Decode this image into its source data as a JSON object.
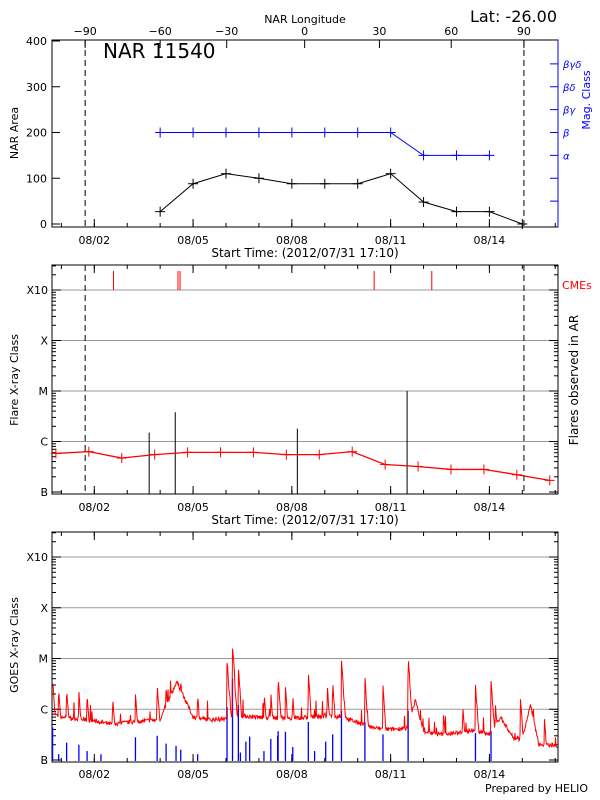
{
  "header": {
    "lat_label": "Lat: -26.00",
    "region_title": "NAR 11540"
  },
  "footer": {
    "credit": "Prepared by HELIO"
  },
  "colors": {
    "area": "#000000",
    "mag_class": "#0000ff",
    "flare_background": "#ff0000",
    "cme": "#ff0000",
    "goes_flux": "#ff0000",
    "goes_events": "#0000ff",
    "grid": "#999999"
  },
  "chart_data": [
    {
      "type": "line",
      "title": "NAR 11540",
      "xlabel": "Start Time: (2012/07/31 17:10)",
      "ylabel": "NAR Area",
      "y2label": "Mag. Class",
      "x2label": "NAR Longitude",
      "xlim": [
        "2012-07-31 17:10",
        "2012-08-16 02:00"
      ],
      "ylim": [
        0,
        400
      ],
      "yticks": [
        0,
        100,
        200,
        300,
        400
      ],
      "xtick_labels": [
        "08/02",
        "08/05",
        "08/08",
        "08/11",
        "08/14"
      ],
      "xtick_dates": [
        "2012-08-02 00:00",
        "2012-08-05 00:00",
        "2012-08-08 00:00",
        "2012-08-11 00:00",
        "2012-08-14 00:00"
      ],
      "longitude_ticks": [
        {
          "label": "-90",
          "date": "2012-08-01 17:20"
        },
        {
          "label": "-60",
          "date": "2012-08-04 00:00"
        },
        {
          "label": "-30",
          "date": "2012-08-06 00:30"
        },
        {
          "label": "0",
          "date": "2012-08-08 09:20"
        },
        {
          "label": "30",
          "date": "2012-08-10 15:50"
        },
        {
          "label": "60",
          "date": "2012-08-12 20:10"
        },
        {
          "label": "90",
          "date": "2012-08-15 01:10"
        }
      ],
      "limb_lines": [
        "2012-08-01 17:20",
        "2012-08-15 01:10"
      ],
      "mag_class_ticks": [
        {
          "label": "α",
          "value": 150
        },
        {
          "label": "β",
          "value": 200
        },
        {
          "label": "βγ",
          "value": 250
        },
        {
          "label": "βδ",
          "value": 300
        },
        {
          "label": "βγδ",
          "value": 350
        },
        {
          "label": "",
          "value": 100
        },
        {
          "label": "",
          "value": 50
        }
      ],
      "series": [
        {
          "key": "area",
          "x": [
            "2012-08-04 00:00",
            "2012-08-05 00:00",
            "2012-08-06 00:00",
            "2012-08-07 00:00",
            "2012-08-08 00:00",
            "2012-08-09 00:00",
            "2012-08-10 00:00",
            "2012-08-11 00:00",
            "2012-08-12 00:00",
            "2012-08-13 00:00",
            "2012-08-14 00:00",
            "2012-08-15 00:00"
          ],
          "values": [
            27,
            88,
            110,
            100,
            88,
            88,
            88,
            110,
            48,
            27,
            27,
            0
          ]
        },
        {
          "key": "mag_class",
          "x": [
            "2012-08-04 00:00",
            "2012-08-05 00:00",
            "2012-08-06 00:00",
            "2012-08-07 00:00",
            "2012-08-08 00:00",
            "2012-08-09 00:00",
            "2012-08-10 00:00",
            "2012-08-11 00:00",
            "2012-08-12 00:00",
            "2012-08-13 00:00",
            "2012-08-14 00:00"
          ],
          "values": [
            "β",
            "β",
            "β",
            "β",
            "β",
            "β",
            "β",
            "β",
            "α",
            "α",
            "α"
          ]
        }
      ]
    },
    {
      "type": "line",
      "xlabel": "Start Time: (2012/07/31 17:10)",
      "ylabel": "Flare X-ray Class",
      "y2label": "Flares observed in AR",
      "cme_label": "CMEs",
      "yscale": "log",
      "ylim": [
        1e-07,
        0.001
      ],
      "ytick_labels": [
        "B",
        "C",
        "M",
        "X",
        "X10"
      ],
      "ytick_values": [
        1e-07,
        1e-06,
        1e-05,
        0.0001,
        0.001
      ],
      "xlim": [
        "2012-07-31 17:10",
        "2012-08-16 02:00"
      ],
      "xtick_labels": [
        "08/02",
        "08/05",
        "08/08",
        "08/11",
        "08/14"
      ],
      "limb_lines": [
        "2012-08-01 17:20",
        "2012-08-15 01:10"
      ],
      "background": {
        "x": [
          "2012-07-31 20:00",
          "2012-08-01 20:00",
          "2012-08-02 20:00",
          "2012-08-03 20:00",
          "2012-08-04 20:00",
          "2012-08-05 20:00",
          "2012-08-06 20:00",
          "2012-08-07 20:00",
          "2012-08-08 20:00",
          "2012-08-09 20:00",
          "2012-08-10 20:00",
          "2012-08-11 20:00",
          "2012-08-12 20:00",
          "2012-08-13 20:00",
          "2012-08-14 20:00",
          "2012-08-15 20:00"
        ],
        "values": [
          5.8e-07,
          6.3e-07,
          4.7e-07,
          5.5e-07,
          6.1e-07,
          6.1e-07,
          6.1e-07,
          5.5e-07,
          5.5e-07,
          6.3e-07,
          3.5e-07,
          3.2e-07,
          2.8e-07,
          2.8e-07,
          2.2e-07,
          1.7e-07
        ]
      },
      "flares": [
        {
          "date": "2012-08-03 16:00",
          "flux": 1.5e-06
        },
        {
          "date": "2012-08-04 11:00",
          "flux": 3.8e-06
        },
        {
          "date": "2012-08-08 04:00",
          "flux": 1.8e-06
        },
        {
          "date": "2012-08-11 12:00",
          "flux": 1e-05
        }
      ],
      "cmes": [
        "2012-08-02 14:00",
        "2012-08-04 13:00",
        "2012-08-04 14:30",
        "2012-08-10 12:00",
        "2012-08-12 06:00"
      ]
    },
    {
      "type": "line",
      "ylabel": "GOES X-ray Class",
      "yscale": "log",
      "ylim": [
        1e-07,
        0.001
      ],
      "ytick_labels": [
        "B",
        "C",
        "M",
        "X",
        "X10"
      ],
      "ytick_values": [
        1e-07,
        1e-06,
        1e-05,
        0.0001,
        0.001
      ],
      "xlim": [
        "2012-07-31 17:10",
        "2012-08-16 02:00"
      ],
      "xtick_labels": [
        "08/02",
        "08/05",
        "08/08",
        "08/11",
        "08/14"
      ],
      "goes_background": {
        "x": [
          "2012-07-31 17:10",
          "2012-08-01 00:00",
          "2012-08-01 12:00",
          "2012-08-02 00:00",
          "2012-08-02 12:00",
          "2012-08-03 00:00",
          "2012-08-03 12:00",
          "2012-08-04 00:00",
          "2012-08-04 12:00",
          "2012-08-04 18:00",
          "2012-08-05 00:00",
          "2012-08-05 12:00",
          "2012-08-06 00:00",
          "2012-08-06 12:00",
          "2012-08-07 00:00",
          "2012-08-07 12:00",
          "2012-08-08 00:00",
          "2012-08-08 12:00",
          "2012-08-09 00:00",
          "2012-08-09 12:00",
          "2012-08-10 00:00",
          "2012-08-10 12:00",
          "2012-08-11 00:00",
          "2012-08-11 12:00",
          "2012-08-11 18:00",
          "2012-08-12 00:00",
          "2012-08-12 12:00",
          "2012-08-13 00:00",
          "2012-08-13 12:00",
          "2012-08-14 00:00",
          "2012-08-14 08:00",
          "2012-08-14 18:00",
          "2012-08-15 00:00",
          "2012-08-15 06:00",
          "2012-08-15 12:00",
          "2012-08-16 02:00"
        ],
        "values": [
          8e-07,
          6.9e-07,
          6.5e-07,
          5.9e-07,
          5.1e-07,
          5.5e-07,
          5.9e-07,
          6.2e-07,
          3.5e-06,
          1.6e-06,
          7e-07,
          6.2e-07,
          6.4e-07,
          7.4e-07,
          6.9e-07,
          6.9e-07,
          6.6e-07,
          6.9e-07,
          7.4e-07,
          7e-07,
          5.5e-07,
          4.3e-07,
          4e-07,
          4.3e-07,
          1.5e-06,
          3.7e-07,
          3.2e-07,
          3.4e-07,
          3.9e-07,
          3.2e-07,
          7e-07,
          2.6e-07,
          2.6e-07,
          1.2e-06,
          2e-07,
          1.9e-07
        ]
      },
      "goes_peaks": [
        {
          "date": "2012-07-31 17:35",
          "flux": 4.2e-06
        },
        {
          "date": "2012-07-31 22:00",
          "flux": 2.6e-06
        },
        {
          "date": "2012-08-01 03:50",
          "flux": 2.6e-06
        },
        {
          "date": "2012-08-01 12:45",
          "flux": 2.4e-06
        },
        {
          "date": "2012-08-01 18:45",
          "flux": 2e-06
        },
        {
          "date": "2012-08-02 13:25",
          "flux": 1.7e-06
        },
        {
          "date": "2012-08-03 06:00",
          "flux": 2e-06
        },
        {
          "date": "2012-08-03 21:50",
          "flux": 3.2e-06
        },
        {
          "date": "2012-08-04 04:20",
          "flux": 2.9e-06
        },
        {
          "date": "2012-08-04 15:00",
          "flux": 3.8e-06
        },
        {
          "date": "2012-08-05 03:20",
          "flux": 2e-06
        },
        {
          "date": "2012-08-06 00:45",
          "flux": 1e-05
        },
        {
          "date": "2012-08-06 04:45",
          "flux": 1.8e-05
        },
        {
          "date": "2012-08-06 09:00",
          "flux": 6.7e-06
        },
        {
          "date": "2012-08-07 03:50",
          "flux": 2.1e-06
        },
        {
          "date": "2012-08-07 08:40",
          "flux": 2.2e-06
        },
        {
          "date": "2012-08-07 14:00",
          "flux": 4.5e-06
        },
        {
          "date": "2012-08-07 19:20",
          "flux": 2.8e-06
        },
        {
          "date": "2012-08-08 00:40",
          "flux": 1.9e-06
        },
        {
          "date": "2012-08-08 12:00",
          "flux": 5.4e-06
        },
        {
          "date": "2012-08-09 01:50",
          "flux": 3e-06
        },
        {
          "date": "2012-08-09 05:45",
          "flux": 3.6e-06
        },
        {
          "date": "2012-08-09 12:10",
          "flux": 9.2e-06
        },
        {
          "date": "2012-08-10 05:15",
          "flux": 4.4e-06
        },
        {
          "date": "2012-08-10 18:25",
          "flux": 3e-06
        },
        {
          "date": "2012-08-11 12:45",
          "flux": 1.1e-05
        },
        {
          "date": "2012-08-12 14:35",
          "flux": 8.7e-07
        },
        {
          "date": "2012-08-13 04:35",
          "flux": 1.15e-06
        },
        {
          "date": "2012-08-13 13:50",
          "flux": 3.1e-06
        },
        {
          "date": "2012-08-14 01:10",
          "flux": 3.7e-06
        },
        {
          "date": "2012-08-14 04:20",
          "flux": 1.3e-06
        },
        {
          "date": "2012-08-14 22:35",
          "flux": 1.7e-06
        },
        {
          "date": "2012-08-15 05:30",
          "flux": 9e-07
        },
        {
          "date": "2012-08-15 16:05",
          "flux": 6.9e-07
        },
        {
          "date": "2012-08-15 21:50",
          "flux": 2.5e-07
        }
      ],
      "goes_events": [
        {
          "date": "2012-07-31 17:35",
          "flux": 4.4e-07
        },
        {
          "date": "2012-07-31 22:00",
          "flux": 1.3e-07
        },
        {
          "date": "2012-08-01 03:50",
          "flux": 2.2e-07
        },
        {
          "date": "2012-08-01 12:45",
          "flux": 2e-07
        },
        {
          "date": "2012-08-01 18:45",
          "flux": 1.5e-07
        },
        {
          "date": "2012-08-02 04:50",
          "flux": 1.3e-07
        },
        {
          "date": "2012-08-03 06:00",
          "flux": 2.8e-07
        },
        {
          "date": "2012-08-03 21:50",
          "flux": 3e-07
        },
        {
          "date": "2012-08-04 04:20",
          "flux": 2.1e-07
        },
        {
          "date": "2012-08-04 11:35",
          "flux": 1.9e-07
        },
        {
          "date": "2012-08-04 15:00",
          "flux": 1.6e-07
        },
        {
          "date": "2012-08-05 03:20",
          "flux": 1.3e-07
        },
        {
          "date": "2012-08-06 00:45",
          "flux": 1.1e-06
        },
        {
          "date": "2012-08-06 04:45",
          "flux": 4e-06
        },
        {
          "date": "2012-08-06 09:00",
          "flux": 1.2e-06
        },
        {
          "date": "2012-08-06 10:30",
          "flux": 1.4e-07
        },
        {
          "date": "2012-08-06 14:30",
          "flux": 2.3e-07
        },
        {
          "date": "2012-08-06 17:15",
          "flux": 2.9e-07
        },
        {
          "date": "2012-08-07 03:40",
          "flux": 1.5e-07
        },
        {
          "date": "2012-08-07 08:40",
          "flux": 2.6e-07
        },
        {
          "date": "2012-08-07 13:40",
          "flux": 3e-07
        },
        {
          "date": "2012-08-07 14:00",
          "flux": 3.7e-07
        },
        {
          "date": "2012-08-07 19:20",
          "flux": 3.6e-07
        },
        {
          "date": "2012-08-08 00:40",
          "flux": 1.8e-07
        },
        {
          "date": "2012-08-08 12:00",
          "flux": 5.6e-07
        },
        {
          "date": "2012-08-08 16:35",
          "flux": 1.5e-07
        },
        {
          "date": "2012-08-09 00:40",
          "flux": 2.3e-07
        },
        {
          "date": "2012-08-09 05:45",
          "flux": 3.2e-07
        },
        {
          "date": "2012-08-09 12:10",
          "flux": 9.4e-07
        },
        {
          "date": "2012-08-10 05:15",
          "flux": 5.6e-07
        },
        {
          "date": "2012-08-10 18:25",
          "flux": 3.2e-07
        },
        {
          "date": "2012-08-11 12:45",
          "flux": 9.4e-07
        },
        {
          "date": "2012-08-13 13:50",
          "flux": 3.4e-07
        },
        {
          "date": "2012-08-14 01:10",
          "flux": 3.7e-07
        }
      ]
    }
  ]
}
